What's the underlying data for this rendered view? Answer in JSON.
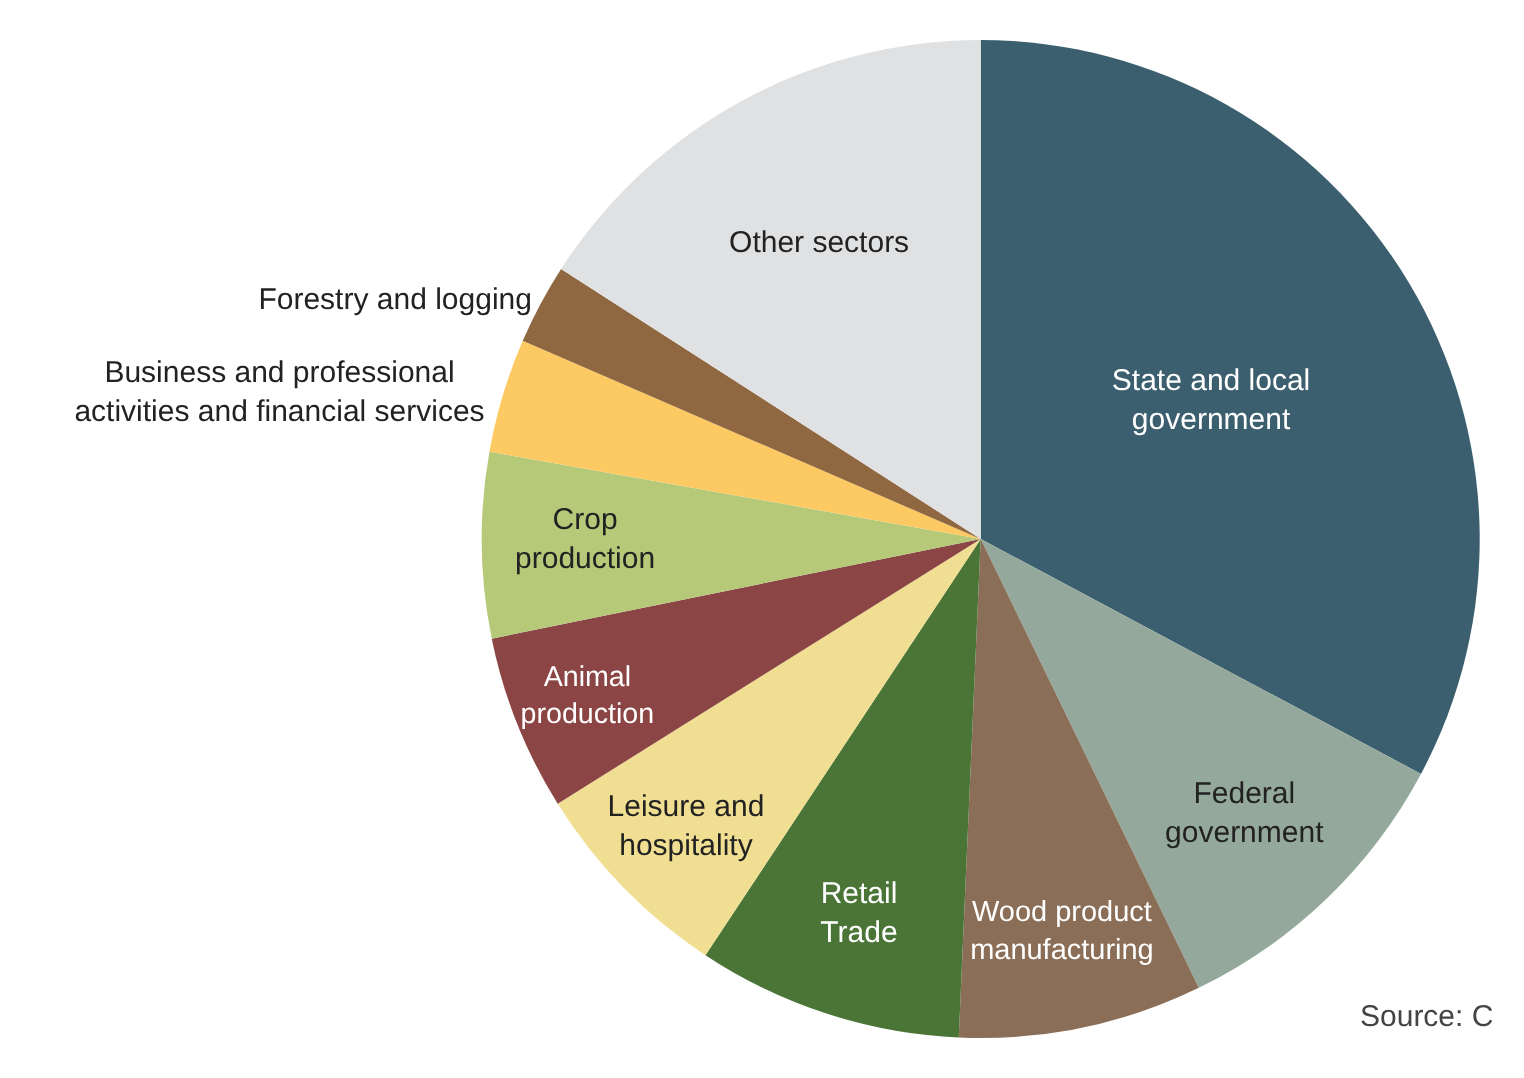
{
  "chart_data": {
    "type": "pie",
    "categories": [
      "State and local\ngovernment",
      "Federal\ngovernment",
      "Wood product\nmanufacturing",
      "Retail\nTrade",
      "Leisure and\nhospitality",
      "Animal\nproduction",
      "Crop\nproduction",
      "Business and professional\nactivities and financial services",
      "Forestry and logging",
      "Other sectors"
    ],
    "values": [
      32.8,
      10,
      7.9,
      8.6,
      6.8,
      5.7,
      6,
      3.7,
      2.6,
      15.9
    ],
    "colors": [
      "#3b5f6e",
      "#94a99b",
      "#8a6e57",
      "#4a7537",
      "#f0df92",
      "#8b4545",
      "#b5c978",
      "#fcc962",
      "#8f6740",
      "#e0e1e3"
    ],
    "annotations": [
      "Source: C"
    ]
  }
}
